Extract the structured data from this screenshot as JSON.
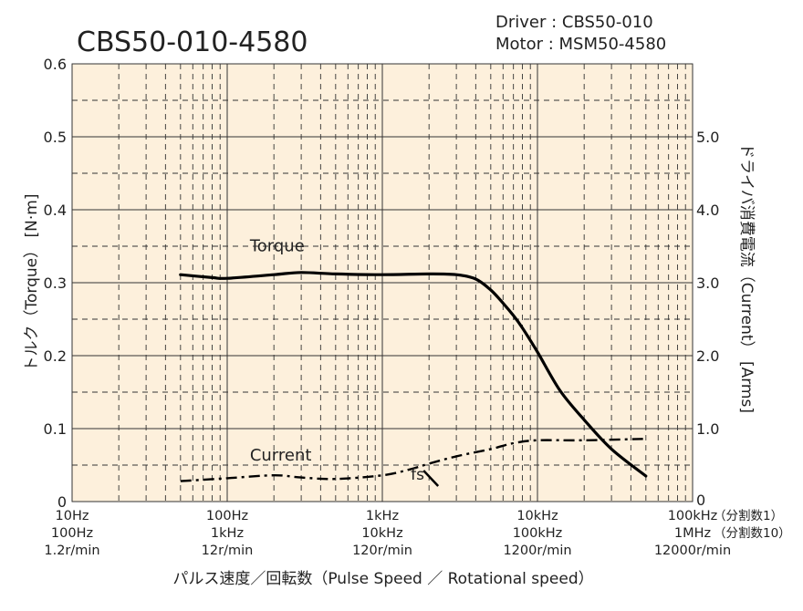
{
  "chart_data": {
    "type": "line",
    "title": "CBS50-010-4580",
    "header": {
      "driver_label": "Driver",
      "driver_value": "CBS50-010",
      "motor_label": "Motor",
      "motor_value": "MSM50-4580"
    },
    "x_scale": "log",
    "xlim": [
      10,
      100000
    ],
    "x_ticks": [
      {
        "value": 10,
        "lines": [
          "10Hz",
          "100Hz",
          "1.2r/min"
        ]
      },
      {
        "value": 100,
        "lines": [
          "100Hz",
          "1kHz",
          "12r/min"
        ]
      },
      {
        "value": 1000,
        "lines": [
          "1kHz",
          "10kHz",
          "120r/min"
        ]
      },
      {
        "value": 10000,
        "lines": [
          "10kHz",
          "100kHz",
          "1200r/min"
        ]
      },
      {
        "value": 100000,
        "lines": [
          "100kHz",
          "1MHz",
          "12000r/min"
        ]
      }
    ],
    "x_tick_suffixes": [
      "（分割数1）",
      "（分割数10）"
    ],
    "xlabel": "パルス速度／回転数（Pulse Speed ／ Rotational speed）",
    "ylabel_left": "トルク（Torque） [N·m]",
    "ylabel_right": "ドライバ消費電流（Current） [Arms]",
    "ylim_left": [
      0,
      0.6
    ],
    "ylim_right": [
      0,
      6.0
    ],
    "y_ticks_left": [
      "0",
      "0.1",
      "0.2",
      "0.3",
      "0.4",
      "0.5",
      "0.6"
    ],
    "y_ticks_right": [
      "0",
      "1.0",
      "2.0",
      "3.0",
      "4.0",
      "5.0"
    ],
    "grid": true,
    "background_color": "#fdf0dc",
    "series": [
      {
        "name": "Torque",
        "axis": "left",
        "style": "solid",
        "x": [
          50,
          80,
          100,
          200,
          300,
          500,
          1000,
          2000,
          3000,
          4000,
          5000,
          6000,
          7000,
          8000,
          10000,
          14000,
          20000,
          30000,
          50000
        ],
        "y": [
          0.311,
          0.307,
          0.306,
          0.311,
          0.314,
          0.312,
          0.311,
          0.312,
          0.311,
          0.305,
          0.29,
          0.272,
          0.255,
          0.238,
          0.205,
          0.152,
          0.112,
          0.072,
          0.035
        ]
      },
      {
        "name": "Current",
        "axis": "right",
        "style": "dashdot",
        "x": [
          50,
          100,
          200,
          300,
          500,
          1000,
          1500,
          2000,
          3000,
          5000,
          7000,
          10000,
          20000,
          50000
        ],
        "y": [
          0.28,
          0.32,
          0.36,
          0.33,
          0.31,
          0.36,
          0.44,
          0.52,
          0.62,
          0.72,
          0.8,
          0.84,
          0.84,
          0.86
        ]
      }
    ],
    "annotations": [
      {
        "text": "fs",
        "x": 2000,
        "y_axis": "right",
        "y": 0.3
      }
    ]
  }
}
